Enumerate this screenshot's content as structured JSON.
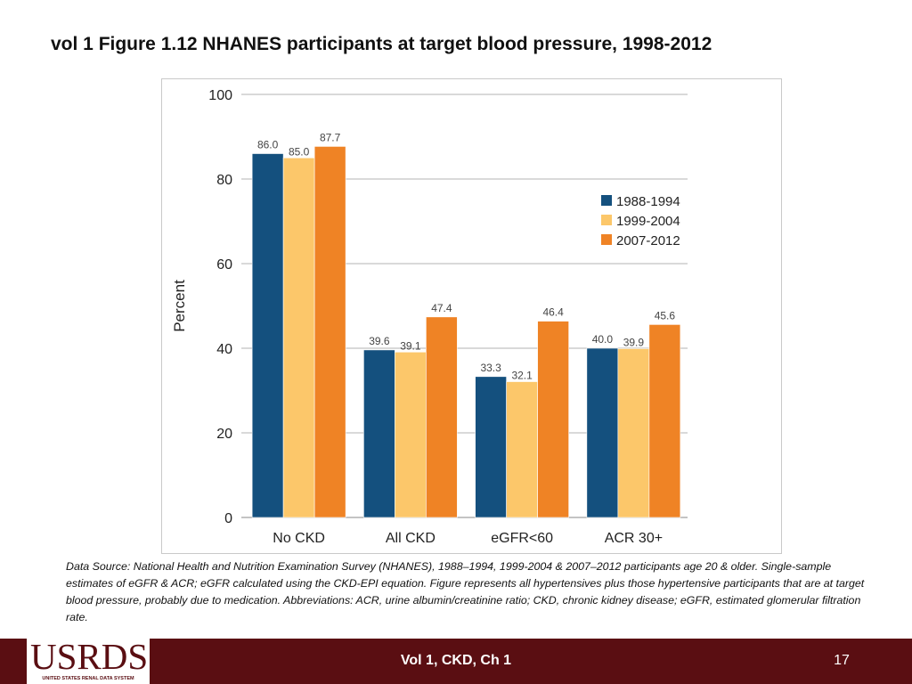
{
  "slide": {
    "title": "vol 1 Figure 1.12  NHANES participants at target blood pressure, 1998-2012"
  },
  "chart_data": {
    "type": "bar",
    "title": "",
    "xlabel": "",
    "ylabel": "Percent",
    "ylim": [
      0,
      100
    ],
    "yticks": [
      0,
      20,
      40,
      60,
      80,
      100
    ],
    "grid": true,
    "legend_position": "right",
    "categories": [
      "No CKD",
      "All CKD",
      "eGFR<60",
      "ACR 30+"
    ],
    "series": [
      {
        "name": "1988-1994",
        "color": "#14507e",
        "values": [
          86.0,
          39.6,
          33.3,
          40.0
        ],
        "labels": [
          "86.0",
          "39.6",
          "33.3",
          "40.0"
        ]
      },
      {
        "name": "1999-2004",
        "color": "#fcc76a",
        "values": [
          85.0,
          39.1,
          32.1,
          39.9
        ],
        "labels": [
          "85.0",
          "39.1",
          "32.1",
          "39.9"
        ]
      },
      {
        "name": "2007-2012",
        "color": "#ef8325",
        "values": [
          87.7,
          47.4,
          46.4,
          45.6
        ],
        "labels": [
          "87.7",
          "47.4",
          "46.4",
          "45.6"
        ]
      }
    ]
  },
  "footnote": "Data Source: National Health and Nutrition Examination Survey (NHANES), 1988–1994, 1999-2004 & 2007–2012 participants age 20 & older. Single-sample estimates of eGFR & ACR; eGFR calculated using the CKD-EPI equation. Figure represents all hypertensives plus those hypertensive participants that are at target blood pressure, probably due to medication. Abbreviations: ACR, urine albumin/creatinine ratio; CKD, chronic kidney disease; eGFR, estimated glomerular filtration rate.",
  "footer": {
    "logo_text": "USRDS",
    "logo_subtext": "UNITED STATES RENAL DATA SYSTEM",
    "center_label": "Vol 1, CKD, Ch 1",
    "page_number": "17"
  }
}
